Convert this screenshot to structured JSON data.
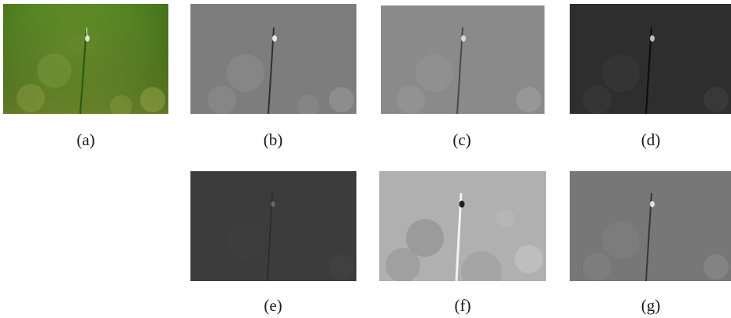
{
  "panels": [
    {
      "id": "a",
      "caption": "(a)",
      "tone": "color"
    },
    {
      "id": "b",
      "caption": "(b)",
      "tone": "gray-mid"
    },
    {
      "id": "c",
      "caption": "(c)",
      "tone": "gray-light"
    },
    {
      "id": "d",
      "caption": "(d)",
      "tone": "gray-dark"
    },
    {
      "id": "e",
      "caption": "(e)",
      "tone": "gray-darker"
    },
    {
      "id": "f",
      "caption": "(f)",
      "tone": "gray-bright"
    },
    {
      "id": "g",
      "caption": "(g)",
      "tone": "gray-mid2"
    }
  ]
}
